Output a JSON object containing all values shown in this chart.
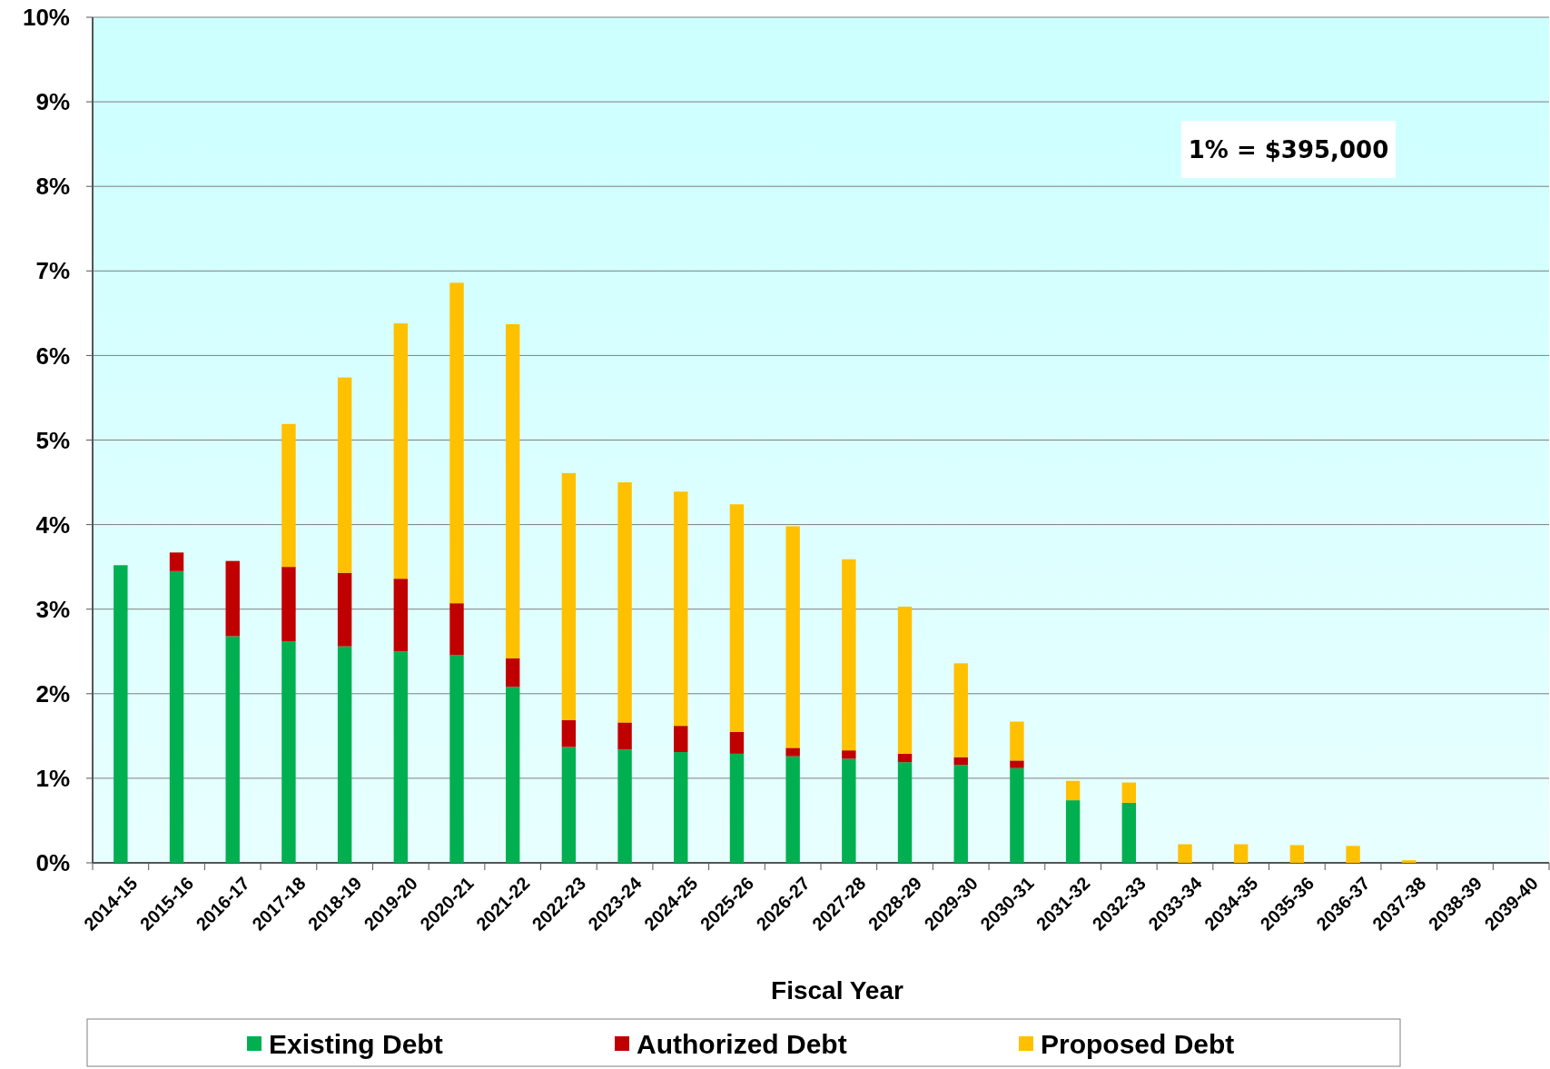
{
  "chart_data": {
    "type": "bar",
    "stacked": true,
    "xlabel": "Fiscal Year",
    "categories": [
      "2014-15",
      "2015-16",
      "2016-17",
      "2017-18",
      "2018-19",
      "2019-20",
      "2020-21",
      "2021-22",
      "2022-23",
      "2023-24",
      "2024-25",
      "2025-26",
      "2026-27",
      "2027-28",
      "2028-29",
      "2029-30",
      "2030-31",
      "2031-32",
      "2032-33",
      "2033-34",
      "2034-35",
      "2035-36",
      "2036-37",
      "2037-38",
      "2038-39",
      "2039-40"
    ],
    "series": [
      {
        "name": "Existing Debt",
        "color": "#00b050",
        "values": [
          3.52,
          3.45,
          2.68,
          2.62,
          2.56,
          2.5,
          2.46,
          2.08,
          1.37,
          1.34,
          1.31,
          1.29,
          1.26,
          1.23,
          1.19,
          1.16,
          1.12,
          0.74,
          0.71,
          0,
          0,
          0,
          0,
          0,
          0,
          0
        ]
      },
      {
        "name": "Authorized Debt",
        "color": "#c00000",
        "values": [
          0,
          0.22,
          0.89,
          0.88,
          0.87,
          0.86,
          0.61,
          0.34,
          0.32,
          0.32,
          0.31,
          0.26,
          0.1,
          0.1,
          0.1,
          0.09,
          0.09,
          0,
          0,
          0,
          0,
          0,
          0,
          0,
          0,
          0
        ]
      },
      {
        "name": "Proposed Debt",
        "color": "#ffc000",
        "values": [
          0,
          0,
          0,
          1.69,
          2.31,
          3.02,
          3.79,
          3.95,
          2.92,
          2.84,
          2.77,
          2.69,
          2.62,
          2.26,
          1.74,
          1.11,
          0.46,
          0.23,
          0.24,
          0.22,
          0.22,
          0.21,
          0.2,
          0.03,
          0,
          0
        ]
      }
    ],
    "ylim": [
      0,
      10
    ],
    "yticks": [
      {
        "value": 0,
        "label": "0%"
      },
      {
        "value": 1,
        "label": "1%"
      },
      {
        "value": 2,
        "label": "2%"
      },
      {
        "value": 3,
        "label": "3%"
      },
      {
        "value": 4,
        "label": "4%"
      },
      {
        "value": 5,
        "label": "5%"
      },
      {
        "value": 6,
        "label": "6%"
      },
      {
        "value": 7,
        "label": "7%"
      },
      {
        "value": 8,
        "label": "8%"
      },
      {
        "value": 9,
        "label": "9%"
      },
      {
        "value": 10,
        "label": "10%"
      }
    ],
    "grid": "y",
    "legend": "bottom",
    "annotations": [
      "1% = $395,000"
    ]
  }
}
